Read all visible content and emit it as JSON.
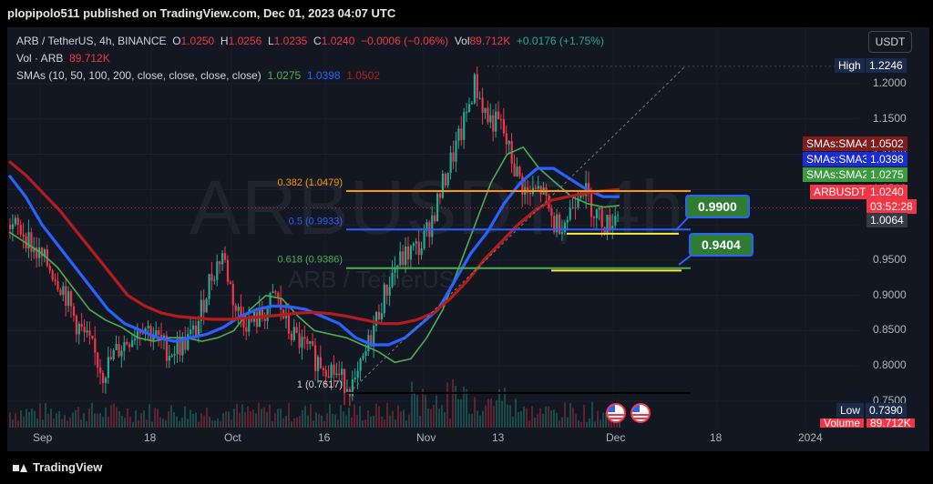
{
  "header": {
    "published": "plopipolo511 published on TradingView.com, Dec 01, 2023 04:07 UTC"
  },
  "legend": {
    "symbol": "ARB / TetherUS, 4h, BINANCE",
    "o_key": "O",
    "o_val": "1.0250",
    "h_key": "H",
    "h_val": "1.0256",
    "l_key": "L",
    "l_val": "1.0235",
    "c_key": "C",
    "c_val": "1.0240",
    "change": "−0.0006 (−0.06%)",
    "vol_key": "Vol",
    "vol_val": "89.712K",
    "vol_change": "+0.0176 (+1.75%)",
    "vol_row_label": "Vol · ARB",
    "vol_row_val": "89.712K",
    "sma_label": "SMAs (10, 50, 100, 200, close, close, close, close)",
    "sma2_val": "1.0275",
    "sma3_val": "1.0398",
    "sma4_val": "1.0502"
  },
  "currency_button": "USDT",
  "watermark": {
    "symbol": "ARBUSDT, 4h",
    "name": "ARB / TetherUS"
  },
  "colors": {
    "bg": "#131722",
    "up": "#22ab94",
    "down": "#f23645",
    "sma2": "#4caf50",
    "sma3": "#2962ff",
    "sma4": "#b71c1c",
    "fib382": "#ff9800",
    "fib05": "#2962ff",
    "fib618": "#4caf50",
    "yellow": "#ffeb3b"
  },
  "fib_labels": {
    "f382": "0.382 (1.0479)",
    "f05": "0.5 (0.9933)",
    "f618": "0.618 (0.9386)",
    "f1": "1 (0.7617)"
  },
  "callouts": {
    "c1": "0.9900",
    "c2": "0.9404"
  },
  "price_axis": [
    "1.2000",
    "1.1500",
    "1.1000",
    "1.0500",
    "1.0000",
    "0.9500",
    "0.9000",
    "0.8500",
    "0.8000",
    "0.7500"
  ],
  "time_axis": [
    "Sep",
    "18",
    "Oct",
    "16",
    "Nov",
    "13",
    "Dec",
    "18",
    "2024"
  ],
  "badges": {
    "high_label": "High",
    "high_val": "1.2246",
    "sma4_label": "SMAs:SMA4",
    "sma4_val": "1.0502",
    "sma3_label": "SMAs:SMA3",
    "sma3_val": "1.0398",
    "sma2_label": "SMAs:SMA2",
    "sma2_val": "1.0275",
    "sym_label": "ARBUSDT",
    "sym_val": "1.0240",
    "countdown": "03:52:28",
    "cross_val": "1.0064",
    "low_label": "Low",
    "low_val": "0.7390",
    "volume_label": "Volume",
    "volume_val": "89.712K"
  },
  "footer": {
    "brand": "TradingView"
  },
  "chart_data": {
    "type": "candlestick",
    "symbol": "ARB / TetherUS",
    "interval": "4h",
    "ylim": [
      0.735,
      1.235
    ],
    "x_ticks": [
      "Sep",
      "18",
      "Oct",
      "16",
      "Nov",
      "13",
      "Dec",
      "18",
      "2024"
    ],
    "swing_high": 1.2246,
    "swing_low": 0.739,
    "last_close": 1.024,
    "fib_levels": [
      {
        "label": "0.382",
        "value": 1.0479
      },
      {
        "label": "0.5",
        "value": 0.9933
      },
      {
        "label": "0.618",
        "value": 0.9386
      },
      {
        "label": "1",
        "value": 0.7617
      }
    ],
    "support_targets": [
      0.99,
      0.9404
    ],
    "series": [
      {
        "name": "SMA2",
        "last": 1.0275,
        "values": [
          0.99,
          0.975,
          0.96,
          0.94,
          0.91,
          0.88,
          0.865,
          0.855,
          0.84,
          0.835,
          0.84,
          0.84,
          0.835,
          0.84,
          0.85,
          0.88,
          0.9,
          0.895,
          0.87,
          0.85,
          0.845,
          0.84,
          0.83,
          0.82,
          0.805,
          0.81,
          0.84,
          0.88,
          0.94,
          1.0,
          1.06,
          1.1,
          1.11,
          1.08,
          1.06,
          1.04,
          1.03,
          1.025,
          1.0275
        ]
      },
      {
        "name": "SMA3",
        "last": 1.0398,
        "values": [
          1.07,
          1.04,
          1.0,
          0.97,
          0.94,
          0.91,
          0.88,
          0.86,
          0.85,
          0.84,
          0.835,
          0.84,
          0.845,
          0.855,
          0.87,
          0.88,
          0.885,
          0.884,
          0.88,
          0.87,
          0.86,
          0.84,
          0.83,
          0.83,
          0.84,
          0.86,
          0.88,
          0.92,
          0.96,
          0.99,
          1.03,
          1.06,
          1.08,
          1.08,
          1.065,
          1.05,
          1.04,
          1.0398
        ]
      },
      {
        "name": "SMA4",
        "last": 1.0502,
        "values": [
          1.09,
          1.07,
          1.045,
          1.02,
          0.99,
          0.96,
          0.93,
          0.9,
          0.885,
          0.875,
          0.87,
          0.868,
          0.866,
          0.866,
          0.868,
          0.87,
          0.872,
          0.875,
          0.876,
          0.874,
          0.87,
          0.865,
          0.86,
          0.86,
          0.865,
          0.875,
          0.895,
          0.92,
          0.95,
          0.975,
          1.0,
          1.02,
          1.035,
          1.04,
          1.045,
          1.048,
          1.0502
        ]
      }
    ],
    "close_path": [
      1.0,
      0.99,
      0.96,
      0.94,
      0.91,
      0.86,
      0.83,
      0.79,
      0.82,
      0.84,
      0.86,
      0.84,
      0.82,
      0.83,
      0.85,
      0.92,
      0.96,
      0.88,
      0.86,
      0.87,
      0.9,
      0.85,
      0.83,
      0.81,
      0.8,
      0.78,
      0.77,
      0.83,
      0.89,
      0.94,
      0.96,
      0.97,
      1.02,
      1.08,
      1.13,
      1.2,
      1.15,
      1.14,
      1.08,
      1.04,
      1.05,
      1.0,
      1.01,
      1.06,
      1.02,
      1.0,
      1.024
    ]
  }
}
